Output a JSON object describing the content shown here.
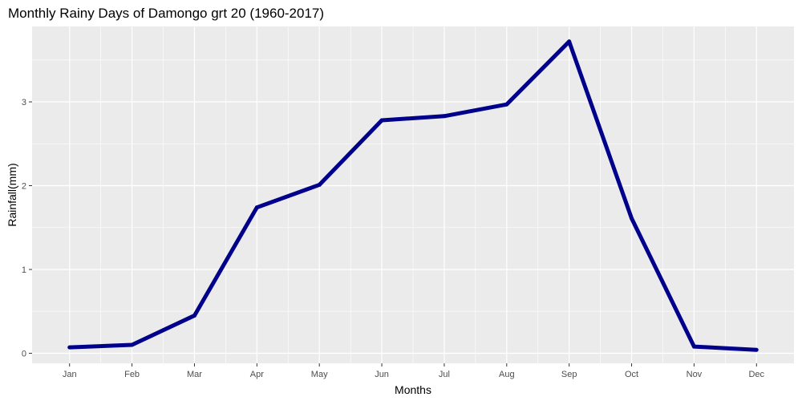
{
  "chart_data": {
    "type": "line",
    "title": "Monthly Rainy Days of Damongo grt 20 (1960-2017)",
    "xlabel": "Months",
    "ylabel": "Rainfall(mm)",
    "categories": [
      "Jan",
      "Feb",
      "Mar",
      "Apr",
      "May",
      "Jun",
      "Jul",
      "Aug",
      "Sep",
      "Oct",
      "Nov",
      "Dec"
    ],
    "series": [
      {
        "values": [
          0.07,
          0.1,
          0.45,
          1.74,
          2.01,
          2.78,
          2.83,
          2.97,
          3.72,
          1.61,
          0.08,
          0.04
        ]
      }
    ],
    "yticks": [
      0,
      1,
      2,
      3
    ],
    "ylim": [
      -0.12,
      3.9
    ],
    "grid": true,
    "colors": {
      "panel_background": "#ebebeb",
      "grid": "#ffffff",
      "line": "#00008b",
      "tick": "#333333"
    }
  }
}
